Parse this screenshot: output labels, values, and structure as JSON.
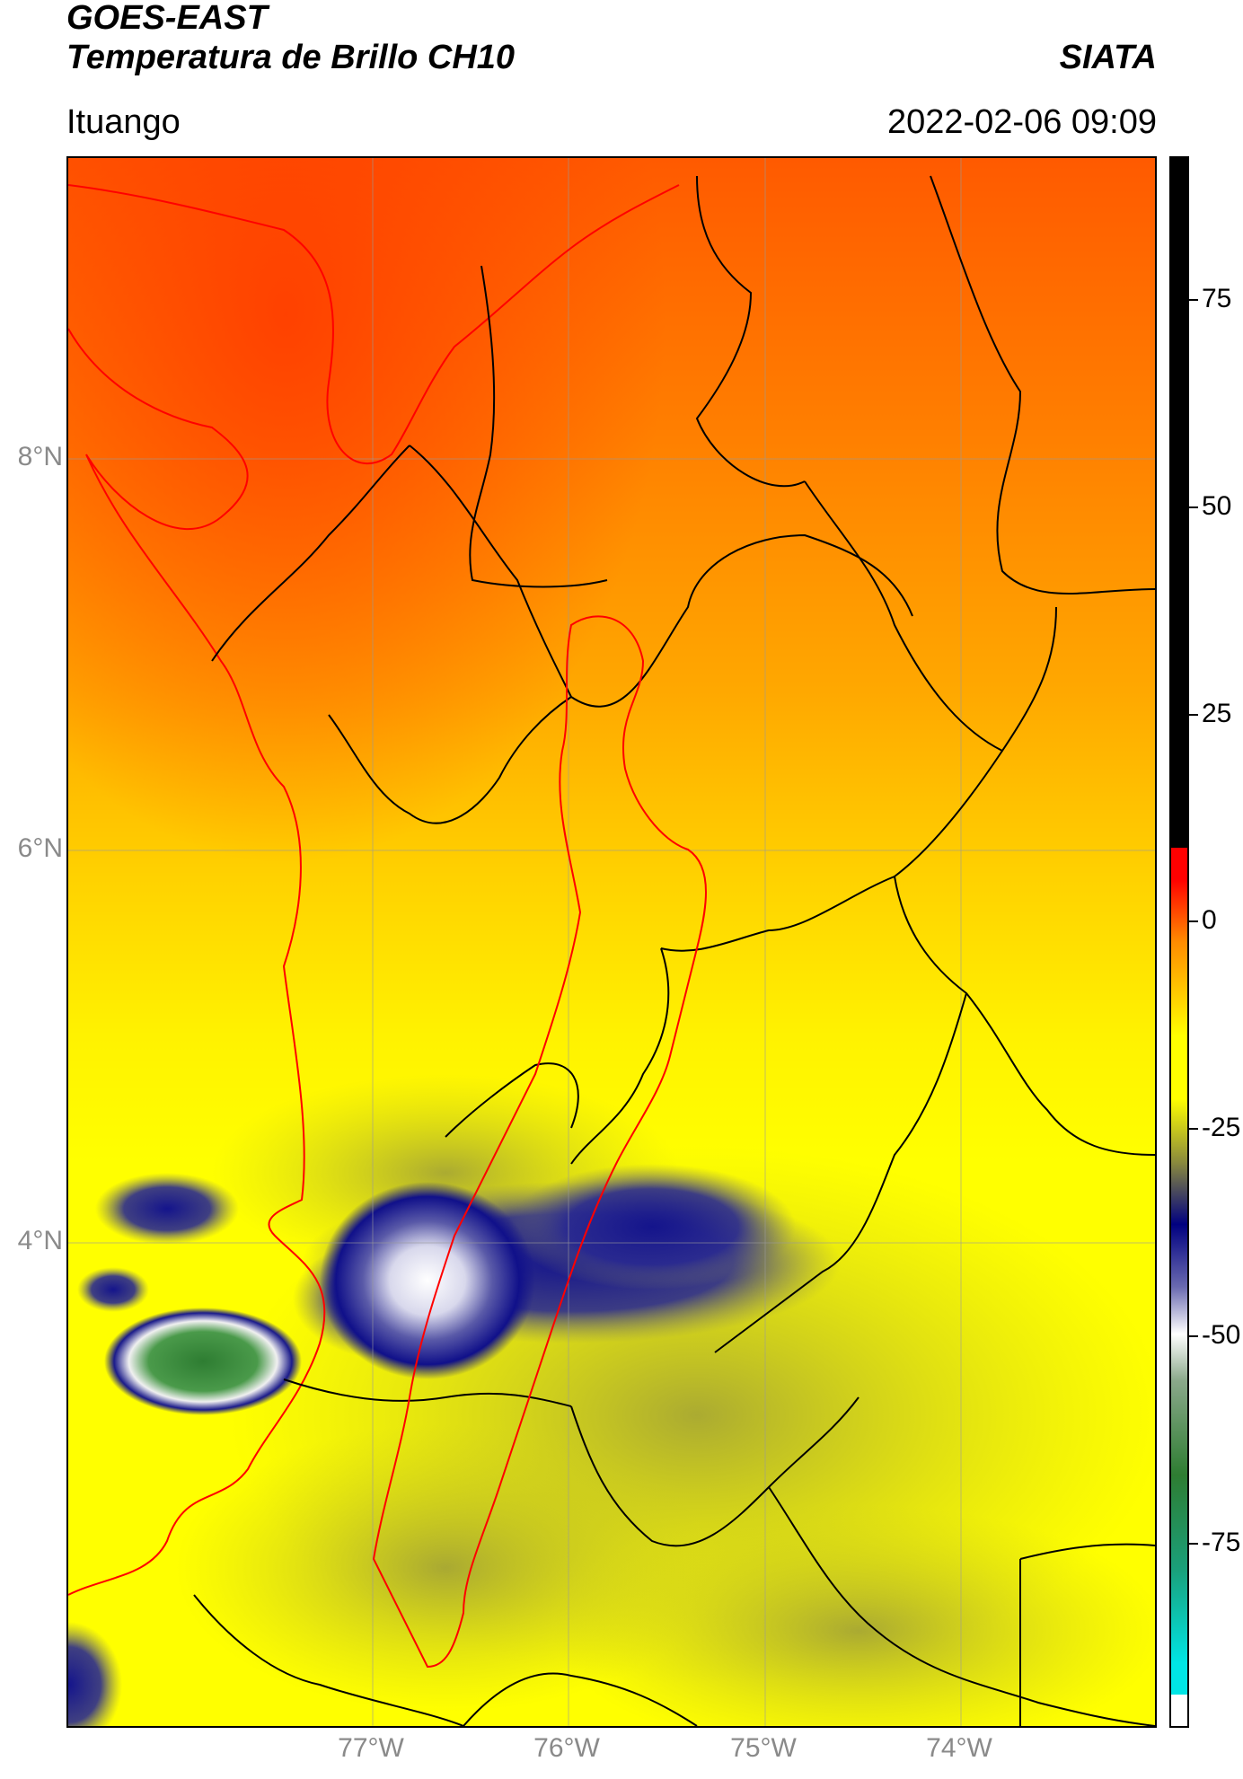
{
  "header": {
    "satellite": "GOES-EAST",
    "product": "Temperatura de Brillo CH10",
    "organization": "SIATA",
    "location": "Ituango",
    "timestamp": "2022-02-06 09:09"
  },
  "map": {
    "lat_labels": [
      "8°N",
      "6°N",
      "4°N"
    ],
    "lon_labels": [
      "77°W",
      "76°W",
      "75°W",
      "74°W"
    ],
    "boundary_colors": {
      "country_coast": "#ff0000",
      "departments": "#000000",
      "basin": "#ff0000"
    }
  },
  "colorbar": {
    "ticks": [
      "75",
      "50",
      "25",
      "0",
      "-25",
      "-50",
      "-75"
    ],
    "colors": {
      "black": "#000000",
      "red": "#ff0000",
      "orange": "#ff8c00",
      "yellow": "#ffff00",
      "olive": "#8c8c3c",
      "navy": "#000080",
      "white": "#ffffff",
      "green": "#2e7d32",
      "cyan": "#00e5e5"
    }
  }
}
